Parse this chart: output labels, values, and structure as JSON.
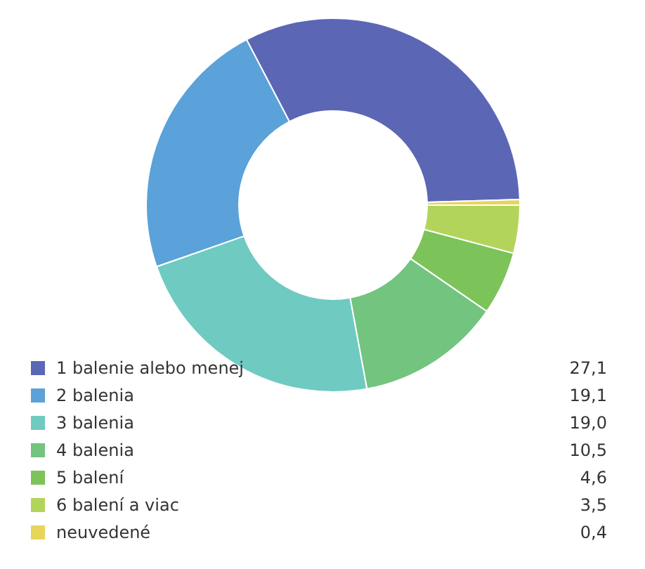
{
  "chart_data": {
    "type": "donut",
    "categories": [
      "1 balenie alebo menej",
      "2 balenia",
      "3 balenia",
      "4 balenia",
      "5 balení",
      "6 balení a viac",
      "neuvedené"
    ],
    "values": [
      27.1,
      19.1,
      19.0,
      10.5,
      4.6,
      3.5,
      0.4
    ],
    "value_labels": [
      "27,1",
      "19,1",
      "19,0",
      "10,5",
      "4,6",
      "3,5",
      "0,4"
    ],
    "colors": [
      "#5b67b5",
      "#5aa2d9",
      "#6fcac1",
      "#72c47f",
      "#7cc459",
      "#b3d45a",
      "#e7d55a"
    ],
    "legend": "bottom"
  }
}
